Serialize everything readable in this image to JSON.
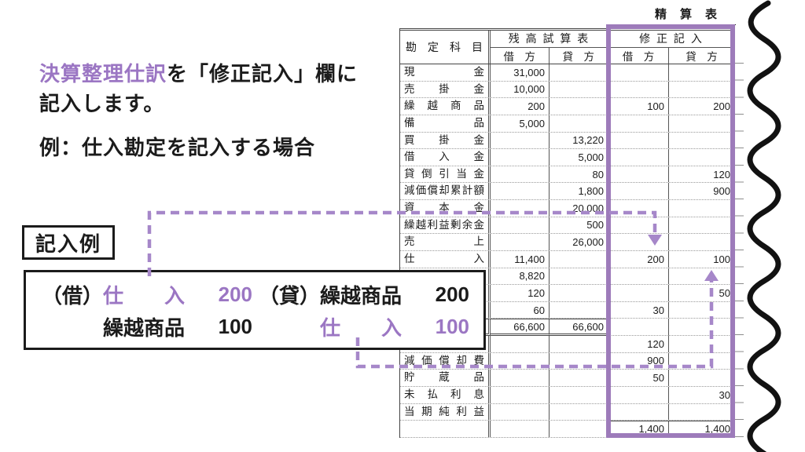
{
  "colors": {
    "accent_text": "#9b76c3",
    "highlight_frame": "#9d7bba",
    "dashed_arrow": "#a687c9",
    "ink": "#1b1b1b"
  },
  "intro": {
    "line1_highlight": "決算整理仕訳",
    "line1_rest": "を「修正記入」欄に",
    "line2": "記入します。",
    "example_heading": "例：仕入勘定を記入する場合"
  },
  "example_label": "記入例",
  "journal": {
    "line1": {
      "debit_prefix": "（借）",
      "debit_account": "仕　　入",
      "debit_amount": "200",
      "credit_prefix": "（貸）",
      "credit_account": "繰越商品",
      "credit_amount": "200"
    },
    "line2": {
      "debit_prefix": "",
      "debit_account": "繰越商品",
      "debit_amount": "100",
      "credit_prefix": "",
      "credit_account": "仕　　入",
      "credit_amount": "100"
    }
  },
  "worksheet": {
    "title": "精　算　表",
    "header": {
      "account": "勘 定 科 目",
      "trial_balance": "残 高 試 算 表",
      "adjustments": "修 正 記 入",
      "debit": "借　方",
      "credit": "貸　方"
    },
    "rows": [
      {
        "name": "現 金",
        "tb_dr": "31,000",
        "tb_cr": "",
        "adj_dr": "",
        "adj_cr": ""
      },
      {
        "name": "売 掛 金",
        "tb_dr": "10,000",
        "tb_cr": "",
        "adj_dr": "",
        "adj_cr": ""
      },
      {
        "name": "繰 越 商 品",
        "tb_dr": "200",
        "tb_cr": "",
        "adj_dr": "100",
        "adj_cr": "200"
      },
      {
        "name": "備 品",
        "tb_dr": "5,000",
        "tb_cr": "",
        "adj_dr": "",
        "adj_cr": ""
      },
      {
        "name": "買 掛 金",
        "tb_dr": "",
        "tb_cr": "13,220",
        "adj_dr": "",
        "adj_cr": ""
      },
      {
        "name": "借 入 金",
        "tb_dr": "",
        "tb_cr": "5,000",
        "adj_dr": "",
        "adj_cr": ""
      },
      {
        "name": "貸 倒 引 当 金",
        "tb_dr": "",
        "tb_cr": "80",
        "adj_dr": "",
        "adj_cr": "120"
      },
      {
        "name": "減価償却累計額",
        "tb_dr": "",
        "tb_cr": "1,800",
        "adj_dr": "",
        "adj_cr": "900"
      },
      {
        "name": "資 本 金",
        "tb_dr": "",
        "tb_cr": "20,000",
        "adj_dr": "",
        "adj_cr": ""
      },
      {
        "name": "繰越利益剰余金",
        "tb_dr": "",
        "tb_cr": "500",
        "adj_dr": "",
        "adj_cr": ""
      },
      {
        "name": "売 上",
        "tb_dr": "",
        "tb_cr": "26,000",
        "adj_dr": "",
        "adj_cr": ""
      },
      {
        "name": "仕 入",
        "tb_dr": "11,400",
        "tb_cr": "",
        "adj_dr": "200",
        "adj_cr": "100"
      },
      {
        "name": "",
        "tb_dr": "8,820",
        "tb_cr": "",
        "adj_dr": "",
        "adj_cr": ""
      },
      {
        "name": "",
        "tb_dr": "120",
        "tb_cr": "",
        "adj_dr": "",
        "adj_cr": "50"
      },
      {
        "name": "",
        "tb_dr": "60",
        "tb_cr": "",
        "adj_dr": "30",
        "adj_cr": ""
      },
      {
        "name": "",
        "tb_dr": "66,600",
        "tb_cr": "66,600",
        "adj_dr": "",
        "adj_cr": "",
        "type": "total"
      },
      {
        "name": "",
        "tb_dr": "",
        "tb_cr": "",
        "adj_dr": "120",
        "adj_cr": ""
      },
      {
        "name": "減 価 償 却 費",
        "tb_dr": "",
        "tb_cr": "",
        "adj_dr": "900",
        "adj_cr": ""
      },
      {
        "name": "貯 蔵 品",
        "tb_dr": "",
        "tb_cr": "",
        "adj_dr": "50",
        "adj_cr": ""
      },
      {
        "name": "未 払 利 息",
        "tb_dr": "",
        "tb_cr": "",
        "adj_dr": "",
        "adj_cr": "30"
      },
      {
        "name": "当 期 純 利 益",
        "tb_dr": "",
        "tb_cr": "",
        "adj_dr": "",
        "adj_cr": ""
      },
      {
        "name": "",
        "tb_dr": "",
        "tb_cr": "",
        "adj_dr": "1,400",
        "adj_cr": "1,400",
        "type": "grand_total"
      }
    ]
  }
}
